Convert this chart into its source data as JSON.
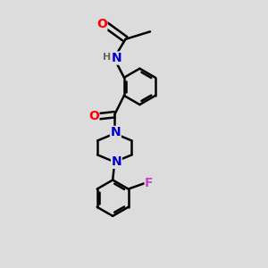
{
  "bg_color": "#dcdcdc",
  "bond_color": "#000000",
  "bond_width": 1.8,
  "atom_colors": {
    "O": "#ff0000",
    "N": "#0000cc",
    "F": "#cc44cc",
    "H": "#666666",
    "C": "#000000"
  },
  "font_size": 10,
  "fig_size": [
    3.0,
    3.0
  ],
  "dpi": 100
}
